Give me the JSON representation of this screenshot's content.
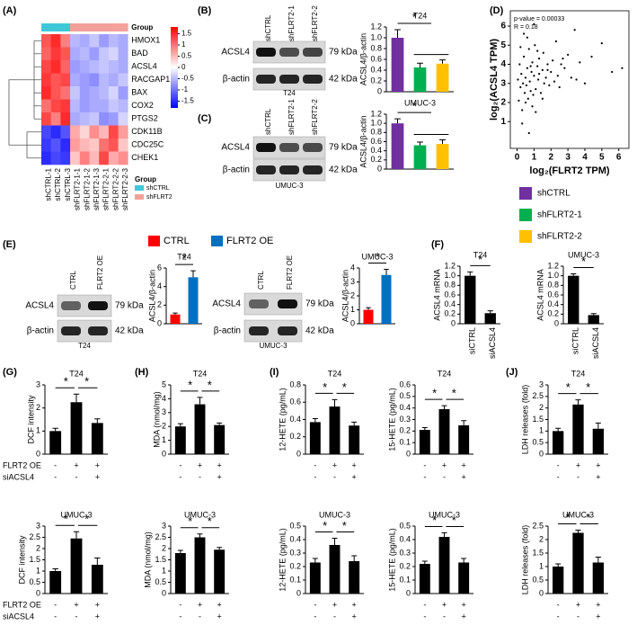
{
  "panels": [
    "(A)",
    "(B)",
    "(C)",
    "(D)",
    "(E)",
    "(F)",
    "(G)",
    "(H)",
    "(I)",
    "(J)"
  ],
  "blots": [
    {
      "lanes": [
        "shCTRL",
        "shFLRT2-1",
        "shFLRT2-2"
      ],
      "rows": [
        "ACSL4",
        "β-actin"
      ],
      "sizes": [
        "79 kDa",
        "42 kDa"
      ],
      "cell": "T24"
    },
    {
      "lanes": [
        "shCTRL",
        "shFLRT2-1",
        "shFLRT2-2"
      ],
      "rows": [
        "ACSL4",
        "β-actin"
      ],
      "sizes": [
        "79 kDa",
        "42 kDa"
      ],
      "cell": "UMUC-3"
    },
    {
      "lanes": [
        "CTRL",
        "FLRT2 OE"
      ],
      "rows": [
        "ACSL4",
        "β-actin"
      ],
      "sizes": [
        "79 kDa",
        "42 kDa"
      ],
      "cell": "T24"
    },
    {
      "lanes": [
        "CTRL",
        "FLRT2 OE"
      ],
      "rows": [
        "ACSL4",
        "β-actin"
      ],
      "sizes": [
        "79 kDa",
        "42 kDa"
      ],
      "cell": "UMUC-3"
    }
  ],
  "conditions": {
    "rows": [
      {
        "label": "FLRT2 OE",
        "signs": [
          "-",
          "+",
          "+"
        ]
      },
      {
        "label": "siACSL4",
        "signs": [
          "-",
          "-",
          "+"
        ]
      }
    ]
  },
  "chart_data": [
    {
      "type": "heatmap",
      "x": [
        "shCTRL-1",
        "shCTRL-2",
        "shCTRL-3",
        "shFLRT2-1-1",
        "shFLRT2-1-2",
        "shFLRT2-1-3",
        "shFLRT2-2-1",
        "shFLRT2-2-2",
        "shFLRT2-2-3"
      ],
      "y": [
        "HMOX1",
        "BAD",
        "ACSL4",
        "RACGAP1",
        "BAX",
        "COX2",
        "PTGS2",
        "CDK11B",
        "CDC25C",
        "CHEK1"
      ],
      "values": [
        [
          1.2,
          1.5,
          0.9,
          -0.5,
          -0.6,
          -0.4,
          -0.7,
          -0.5,
          -0.6
        ],
        [
          1.1,
          1.4,
          1.2,
          -0.6,
          -0.5,
          -0.7,
          -0.4,
          -0.3,
          -0.6
        ],
        [
          1.3,
          1.5,
          1.1,
          -0.7,
          -0.6,
          -0.5,
          -0.4,
          -0.5,
          -0.6
        ],
        [
          1.4,
          1.2,
          1.3,
          -0.6,
          -0.7,
          -0.8,
          -0.5,
          -0.6,
          -0.4
        ],
        [
          1.5,
          1.2,
          1.0,
          -0.4,
          -0.7,
          -0.6,
          -0.5,
          -0.3,
          -0.7
        ],
        [
          1.0,
          1.3,
          1.4,
          -0.5,
          -0.7,
          -0.6,
          -0.6,
          -0.4,
          -0.5
        ],
        [
          1.3,
          0.9,
          1.5,
          -0.6,
          -0.5,
          -0.4,
          -0.8,
          -0.7,
          -0.3
        ],
        [
          -1.3,
          -1.5,
          -1.2,
          0.6,
          0.3,
          0.8,
          0.5,
          1.3,
          0.7
        ],
        [
          -1.4,
          -1.2,
          -1.5,
          0.7,
          0.5,
          0.4,
          1.0,
          1.2,
          0.4
        ],
        [
          -1.5,
          -1.3,
          -1.4,
          0.4,
          0.9,
          0.5,
          1.3,
          0.6,
          0.8
        ]
      ],
      "zlim": [
        -1.8,
        1.8
      ],
      "zticks": [
        1.5,
        1,
        0.5,
        0,
        -0.5,
        -1,
        -1.5
      ],
      "group_title": "Group",
      "sample_groups": [
        "shCTRL",
        "shCTRL",
        "shCTRL",
        "shFLRT2",
        "shFLRT2",
        "shFLRT2",
        "shFLRT2",
        "shFLRT2",
        "shFLRT2"
      ],
      "groups": [
        {
          "name": "shCTRL",
          "color": "#3fc8d8"
        },
        {
          "name": "shFLRT2",
          "color": "#f4a09a"
        }
      ]
    },
    {
      "type": "bar",
      "title": "T24",
      "y_label": "ACSL4/β-actin",
      "ylim": [
        0,
        1.2
      ],
      "yticks": [
        0,
        0.2,
        0.4,
        0.6,
        0.8,
        {
          "value": 1,
          "label": "1.0"
        },
        1.2
      ],
      "series": [
        {
          "name": "shCTRL",
          "color": "#7030a0",
          "values": [
            1.0
          ],
          "errors": [
            0.15
          ]
        },
        {
          "name": "shFLRT2-1",
          "color": "#00b050",
          "values": [
            0.45
          ],
          "errors": [
            0.08
          ]
        },
        {
          "name": "shFLRT2-2",
          "color": "#ffc000",
          "values": [
            0.52
          ],
          "errors": [
            0.07
          ]
        }
      ],
      "annotations": [
        "*"
      ]
    },
    {
      "type": "bar",
      "title": "UMUC-3",
      "y_label": "ACSL4/β-actin",
      "ylim": [
        0,
        1.2
      ],
      "yticks": [
        0,
        0.2,
        0.4,
        0.6,
        0.8,
        {
          "value": 1,
          "label": "1.0"
        },
        1.2
      ],
      "series": [
        {
          "color": "#7030a0",
          "values": [
            1.0
          ],
          "errors": [
            0.1
          ]
        },
        {
          "color": "#00b050",
          "values": [
            0.52
          ],
          "errors": [
            0.07
          ]
        },
        {
          "color": "#ffc000",
          "values": [
            0.55
          ],
          "errors": [
            0.09
          ]
        }
      ],
      "annotations": [
        "*"
      ]
    },
    {
      "type": "scatter",
      "x_label": "log₂(FLRT2 TPM)",
      "y_label": "log₂(ACSL4 TPM)",
      "annotations": [
        "p-value = 0.00033",
        "R = 0.18"
      ],
      "xlim": [
        -0.4,
        6.6
      ],
      "ylim": [
        -0.4,
        6.8
      ],
      "xticks": [
        0,
        1,
        2,
        3,
        4,
        5,
        6
      ],
      "yticks": [
        1,
        2,
        3,
        4,
        5,
        6
      ],
      "color": "#000000",
      "x": [
        0.05,
        0.1,
        0.15,
        0.2,
        0.25,
        0.3,
        0.35,
        0.4,
        0.45,
        0.5,
        0.55,
        0.6,
        0.65,
        0.7,
        0.75,
        0.8,
        0.85,
        0.9,
        0.95,
        1.0,
        1.05,
        1.1,
        1.2,
        1.25,
        1.3,
        1.4,
        1.5,
        1.55,
        1.6,
        1.7,
        1.8,
        1.9,
        2.0,
        2.1,
        2.2,
        2.3,
        2.4,
        2.5,
        2.6,
        2.8,
        3.0,
        3.2,
        3.4,
        3.7,
        4.0,
        4.4,
        5.0,
        5.6,
        6.2,
        0.3,
        0.6,
        0.9,
        1.2,
        1.5,
        0.4,
        0.8,
        1.1,
        0.2,
        0.7,
        1.3,
        2.7,
        3.5,
        0.5,
        1.0,
        1.8
      ],
      "y": [
        3.2,
        2.1,
        4.0,
        2.8,
        3.5,
        1.6,
        3.0,
        4.4,
        2.5,
        3.3,
        2.9,
        3.8,
        2.2,
        4.8,
        3.1,
        2.6,
        3.6,
        4.1,
        2.4,
        3.4,
        5.0,
        2.7,
        3.9,
        3.2,
        4.3,
        2.5,
        3.7,
        4.6,
        3.0,
        3.3,
        4.0,
        2.9,
        3.6,
        4.2,
        3.1,
        5.2,
        3.4,
        2.8,
        4.0,
        3.8,
        4.5,
        3.3,
        5.8,
        4.1,
        3.0,
        4.4,
        5.1,
        3.6,
        3.8,
        0.9,
        5.4,
        1.8,
        4.7,
        2.2,
        5.6,
        3.9,
        1.5,
        4.9,
        0.4,
        3.5,
        4.3,
        3.2,
        2.0,
        6.1,
        3.7
      ]
    },
    {
      "type": "bar",
      "title": "T24",
      "y_label": "ACSL4/β-actin",
      "ylim": [
        0,
        6
      ],
      "yticks": [
        0,
        2,
        4,
        6
      ],
      "series": [
        {
          "name": "CTRL",
          "color": "#ff0000",
          "values": [
            1.0
          ],
          "errors": [
            0.15
          ]
        },
        {
          "name": "FLRT2 OE",
          "color": "#0070c0",
          "values": [
            5.0
          ],
          "errors": [
            0.7
          ]
        }
      ],
      "annotations": [
        "*"
      ]
    },
    {
      "type": "bar",
      "title": "UMUC-3",
      "y_label": "ACSL4/β-actin",
      "ylim": [
        0,
        4
      ],
      "yticks": [
        0,
        1,
        2,
        3,
        4
      ],
      "series": [
        {
          "color": "#ff0000",
          "values": [
            1.0
          ],
          "errors": [
            0.15
          ]
        },
        {
          "color": "#0070c0",
          "values": [
            3.5
          ],
          "errors": [
            0.4
          ]
        }
      ],
      "annotations": [
        "*"
      ]
    },
    {
      "type": "bar",
      "title": "T24",
      "y_label": "ACSL4 mRNA",
      "ylim": [
        0,
        1.2
      ],
      "yticks": [
        0,
        0.2,
        0.4,
        0.6,
        0.8,
        {
          "value": 1,
          "label": "1.0"
        },
        1.2
      ],
      "categories": [
        "siCTRL",
        "siACSL4"
      ],
      "values": [
        1.0,
        0.22
      ],
      "errors": [
        0.08,
        0.05
      ],
      "color": "#000000",
      "annotations": [
        "*"
      ]
    },
    {
      "type": "bar",
      "title": "UMUC-3",
      "y_label": "ACSL4 mRNA",
      "ylim": [
        0,
        1.2
      ],
      "yticks": [
        0,
        0.2,
        0.4,
        0.6,
        0.8,
        {
          "value": 1,
          "label": "1.0"
        },
        1.2
      ],
      "categories": [
        "siCTRL",
        "siACSL4"
      ],
      "values": [
        1.0,
        0.18
      ],
      "errors": [
        0.04,
        0.03
      ],
      "color": "#000000",
      "annotations": [
        "*"
      ]
    },
    {
      "type": "bar",
      "title": "T24",
      "y_label": "DCF intensity",
      "ylim": [
        0,
        3
      ],
      "yticks": [
        0,
        1,
        2,
        3
      ],
      "values": [
        1.0,
        2.25,
        1.35
      ],
      "errors": [
        0.12,
        0.35,
        0.18
      ],
      "color": "#000000",
      "annotations": [
        "*",
        "*"
      ]
    },
    {
      "type": "bar",
      "title": "UMUC-3",
      "y_label": "DCF intensity",
      "ylim": [
        0,
        3
      ],
      "yticks": [
        0,
        0.5,
        1,
        1.5,
        2,
        2.5,
        3
      ],
      "values": [
        1.0,
        2.45,
        1.28
      ],
      "errors": [
        0.1,
        0.3,
        0.3
      ],
      "color": "#000000",
      "annotations": [
        "*",
        "*"
      ]
    },
    {
      "type": "bar",
      "title": "T24",
      "y_label": "MDA (nmol/mg)",
      "ylim": [
        0,
        5
      ],
      "yticks": [
        0,
        1,
        2,
        3,
        4,
        5
      ],
      "values": [
        2.0,
        3.6,
        2.1
      ],
      "errors": [
        0.2,
        0.5,
        0.15
      ],
      "color": "#000000",
      "annotations": [
        "*",
        "*"
      ]
    },
    {
      "type": "bar",
      "title": "UMUC-3",
      "y_label": "MDA (nmol/mg)",
      "ylim": [
        0,
        3
      ],
      "yticks": [
        0,
        0.5,
        1,
        1.5,
        2,
        2.5,
        3
      ],
      "values": [
        1.8,
        2.5,
        1.95
      ],
      "errors": [
        0.12,
        0.15,
        0.1
      ],
      "color": "#000000",
      "annotations": [
        "*",
        "*"
      ]
    },
    {
      "type": "bar",
      "title": "T24",
      "y_label": "12-HETE (pg/mL)",
      "ylim": [
        0,
        0.8
      ],
      "yticks": [
        0,
        0.2,
        0.4,
        0.6,
        0.8
      ],
      "values": [
        0.37,
        0.55,
        0.33
      ],
      "errors": [
        0.04,
        0.08,
        0.04
      ],
      "color": "#000000",
      "annotations": [
        "*",
        "*"
      ]
    },
    {
      "type": "bar",
      "title": "T24",
      "y_label": "15-HETE (pg/mL)",
      "ylim": [
        0,
        0.6
      ],
      "yticks": [
        0,
        0.1,
        0.2,
        0.3,
        0.4,
        0.5,
        0.6
      ],
      "values": [
        0.21,
        0.39,
        0.25
      ],
      "errors": [
        0.02,
        0.03,
        0.04
      ],
      "color": "#000000",
      "annotations": [
        "*",
        "*"
      ]
    },
    {
      "type": "bar",
      "title": "UMUC-3",
      "y_label": "12-HETE (pg/mL)",
      "ylim": [
        0,
        0.5
      ],
      "yticks": [
        0,
        0.1,
        0.2,
        0.3,
        0.4,
        0.5
      ],
      "values": [
        0.23,
        0.36,
        0.24
      ],
      "errors": [
        0.03,
        0.05,
        0.04
      ],
      "color": "#000000",
      "annotations": [
        "*",
        "*"
      ]
    },
    {
      "type": "bar",
      "title": "UMUC-3",
      "y_label": "15-HETE (pg/mL)",
      "ylim": [
        0,
        0.5
      ],
      "yticks": [
        0,
        0.1,
        0.2,
        0.3,
        0.4,
        0.5
      ],
      "values": [
        0.22,
        0.42,
        0.23
      ],
      "errors": [
        0.02,
        0.03,
        0.03
      ],
      "color": "#000000",
      "annotations": [
        "*",
        "*"
      ]
    },
    {
      "type": "bar",
      "title": "T24",
      "y_label": "LDH releases (fold)",
      "ylim": [
        0,
        3
      ],
      "yticks": [
        0,
        0.5,
        1,
        1.5,
        2,
        2.5,
        3
      ],
      "values": [
        1.0,
        2.15,
        1.1
      ],
      "errors": [
        0.12,
        0.2,
        0.25
      ],
      "color": "#000000",
      "annotations": [
        "*",
        "*"
      ]
    },
    {
      "type": "bar",
      "title": "UMUC-3",
      "y_label": "LDH releases (fold)",
      "ylim": [
        0,
        2.5
      ],
      "yticks": [
        0,
        0.5,
        1,
        1.5,
        2,
        2.5
      ],
      "values": [
        1.0,
        2.25,
        1.15
      ],
      "errors": [
        0.1,
        0.1,
        0.2
      ],
      "color": "#000000",
      "annotations": [
        "*",
        "*"
      ]
    }
  ]
}
